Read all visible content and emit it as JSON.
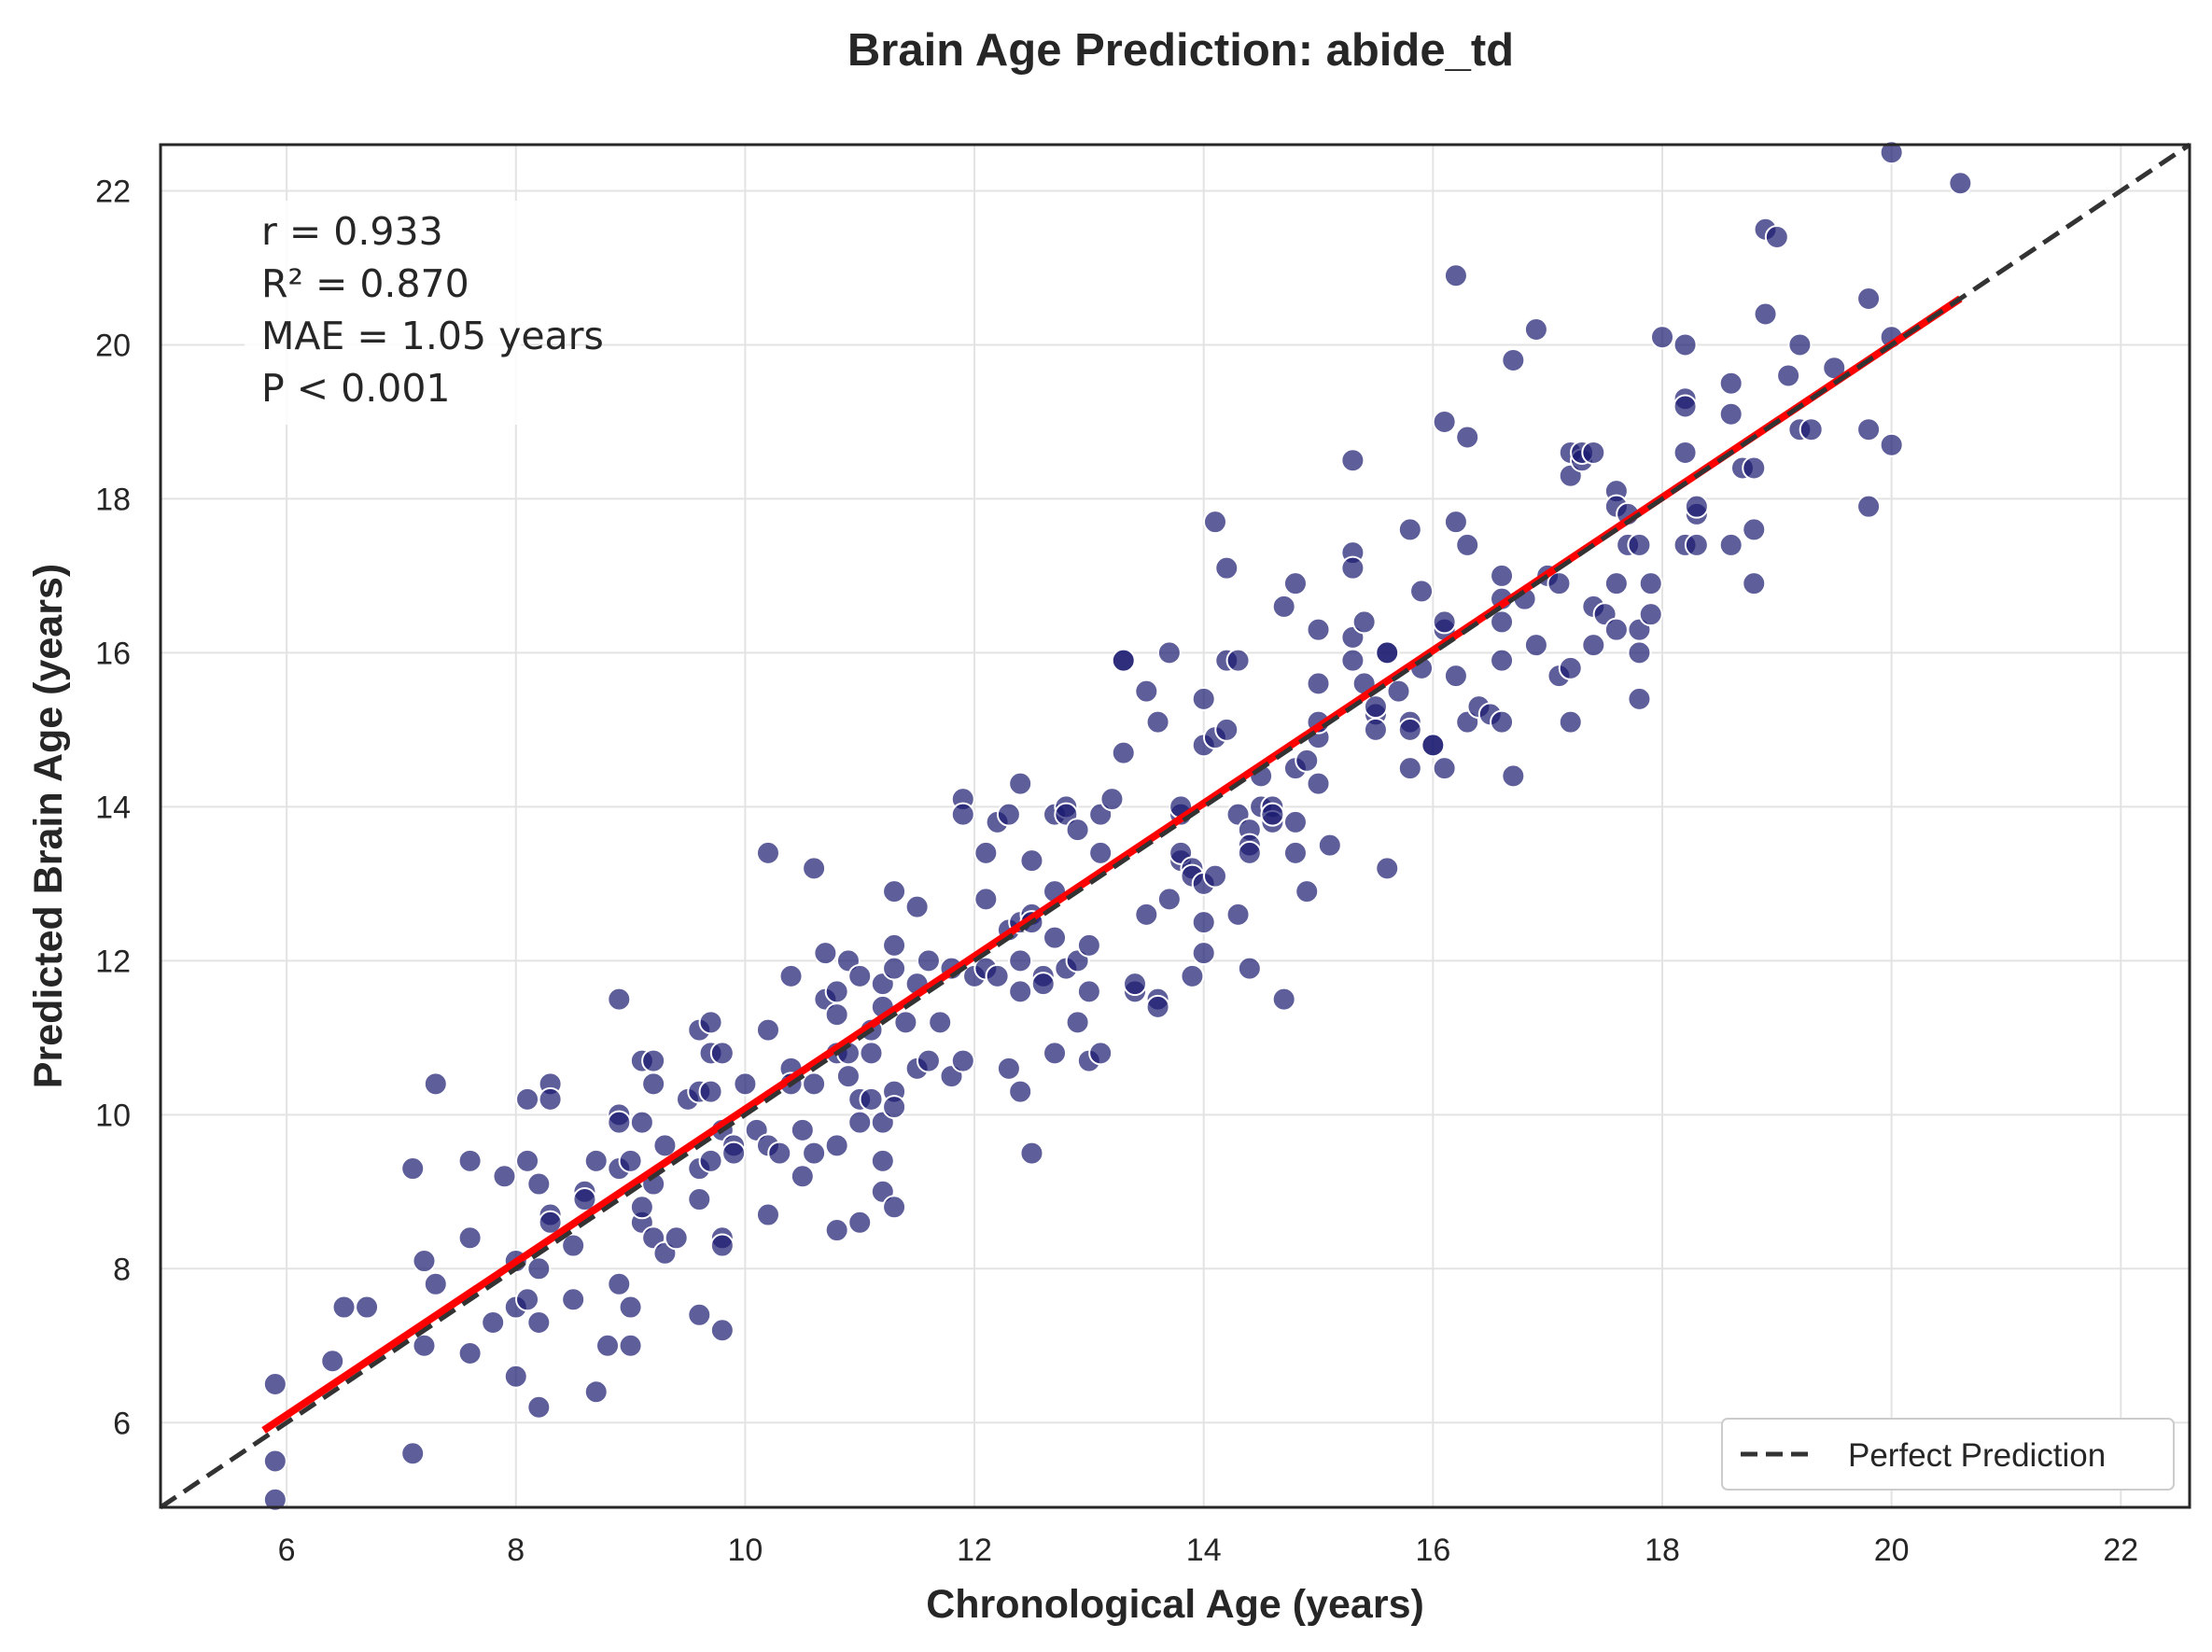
{
  "chart_data": {
    "type": "scatter",
    "title": "Brain Age Prediction: abide_td",
    "xlabel": "Chronological Age (years)",
    "ylabel": "Predicted Brain Age (years)",
    "xlim": [
      4.9,
      22.6
    ],
    "ylim": [
      4.9,
      22.6
    ],
    "xticks": [
      6,
      8,
      10,
      12,
      14,
      16,
      18,
      20,
      22
    ],
    "yticks": [
      6,
      8,
      10,
      12,
      14,
      16,
      18,
      20,
      22
    ],
    "grid": true,
    "legend": {
      "position": "bottom-right",
      "entries": [
        "Perfect Prediction"
      ]
    },
    "stats": {
      "r_line": "r = 0.933",
      "r2_line": "R² = 0.870",
      "mae_line": "MAE = 1.05 years",
      "p_line": "P < 0.001"
    },
    "colors": {
      "points": "#191970",
      "perfect_line": "#333333",
      "fit_line": "#ff0000"
    },
    "perfect_prediction_line": {
      "from": [
        4.9,
        4.9
      ],
      "to": [
        22.6,
        22.6
      ]
    },
    "fit_line": {
      "from": [
        5.8,
        5.9
      ],
      "to": [
        20.6,
        20.6
      ]
    },
    "points": [
      [
        5.9,
        6.5
      ],
      [
        5.9,
        5.5
      ],
      [
        5.9,
        5.0
      ],
      [
        6.4,
        6.8
      ],
      [
        6.5,
        7.5
      ],
      [
        6.7,
        7.5
      ],
      [
        7.1,
        9.3
      ],
      [
        7.1,
        5.6
      ],
      [
        7.2,
        7.0
      ],
      [
        7.2,
        8.1
      ],
      [
        7.3,
        10.4
      ],
      [
        7.3,
        7.8
      ],
      [
        7.6,
        9.4
      ],
      [
        7.6,
        8.4
      ],
      [
        7.6,
        6.9
      ],
      [
        7.8,
        7.3
      ],
      [
        7.9,
        9.2
      ],
      [
        8.0,
        8.1
      ],
      [
        8.0,
        6.6
      ],
      [
        8.0,
        7.5
      ],
      [
        8.1,
        9.4
      ],
      [
        8.1,
        7.6
      ],
      [
        8.1,
        10.2
      ],
      [
        8.2,
        9.1
      ],
      [
        8.2,
        7.3
      ],
      [
        8.2,
        6.2
      ],
      [
        8.2,
        8.0
      ],
      [
        8.3,
        10.4
      ],
      [
        8.3,
        10.2
      ],
      [
        8.3,
        8.7
      ],
      [
        8.3,
        8.6
      ],
      [
        8.5,
        8.3
      ],
      [
        8.5,
        7.6
      ],
      [
        8.6,
        9.0
      ],
      [
        8.6,
        8.9
      ],
      [
        8.7,
        9.4
      ],
      [
        8.7,
        6.4
      ],
      [
        8.8,
        7.0
      ],
      [
        8.9,
        9.3
      ],
      [
        8.9,
        11.5
      ],
      [
        8.9,
        10.0
      ],
      [
        8.9,
        9.9
      ],
      [
        8.9,
        7.8
      ],
      [
        9.0,
        7.5
      ],
      [
        9.0,
        7.0
      ],
      [
        9.0,
        9.4
      ],
      [
        9.1,
        9.9
      ],
      [
        9.1,
        8.6
      ],
      [
        9.1,
        10.7
      ],
      [
        9.1,
        8.8
      ],
      [
        9.2,
        10.7
      ],
      [
        9.2,
        10.4
      ],
      [
        9.2,
        8.4
      ],
      [
        9.2,
        9.1
      ],
      [
        9.3,
        8.2
      ],
      [
        9.3,
        9.6
      ],
      [
        9.4,
        8.4
      ],
      [
        9.5,
        10.2
      ],
      [
        9.6,
        10.3
      ],
      [
        9.6,
        11.1
      ],
      [
        9.6,
        8.9
      ],
      [
        9.6,
        7.4
      ],
      [
        9.6,
        9.3
      ],
      [
        9.7,
        9.4
      ],
      [
        9.7,
        11.2
      ],
      [
        9.7,
        10.8
      ],
      [
        9.7,
        10.3
      ],
      [
        9.8,
        10.8
      ],
      [
        9.8,
        8.4
      ],
      [
        9.8,
        8.3
      ],
      [
        9.8,
        7.2
      ],
      [
        9.8,
        9.8
      ],
      [
        9.9,
        9.6
      ],
      [
        9.9,
        9.5
      ],
      [
        10.0,
        10.4
      ],
      [
        10.1,
        9.8
      ],
      [
        10.2,
        9.6
      ],
      [
        10.2,
        8.7
      ],
      [
        10.2,
        13.4
      ],
      [
        10.2,
        11.1
      ],
      [
        10.3,
        9.5
      ],
      [
        10.4,
        10.6
      ],
      [
        10.4,
        11.8
      ],
      [
        10.4,
        10.4
      ],
      [
        10.5,
        9.2
      ],
      [
        10.5,
        9.8
      ],
      [
        10.6,
        10.4
      ],
      [
        10.6,
        9.5
      ],
      [
        10.6,
        13.2
      ],
      [
        10.7,
        11.5
      ],
      [
        10.7,
        12.1
      ],
      [
        10.8,
        10.8
      ],
      [
        10.8,
        11.6
      ],
      [
        10.8,
        11.3
      ],
      [
        10.8,
        9.6
      ],
      [
        10.8,
        8.5
      ],
      [
        10.9,
        10.8
      ],
      [
        10.9,
        10.5
      ],
      [
        10.9,
        12.0
      ],
      [
        11.0,
        11.8
      ],
      [
        11.0,
        10.2
      ],
      [
        11.0,
        9.9
      ],
      [
        11.0,
        8.6
      ],
      [
        11.1,
        10.8
      ],
      [
        11.1,
        11.1
      ],
      [
        11.1,
        10.2
      ],
      [
        11.2,
        11.4
      ],
      [
        11.2,
        11.7
      ],
      [
        11.2,
        9.9
      ],
      [
        11.2,
        9.4
      ],
      [
        11.2,
        9.0
      ],
      [
        11.3,
        8.8
      ],
      [
        11.3,
        12.9
      ],
      [
        11.3,
        12.2
      ],
      [
        11.3,
        11.9
      ],
      [
        11.3,
        10.3
      ],
      [
        11.3,
        10.1
      ],
      [
        11.4,
        11.2
      ],
      [
        11.5,
        12.7
      ],
      [
        11.5,
        11.7
      ],
      [
        11.5,
        10.6
      ],
      [
        11.6,
        12.0
      ],
      [
        11.6,
        10.7
      ],
      [
        11.7,
        11.2
      ],
      [
        11.8,
        10.5
      ],
      [
        11.8,
        11.9
      ],
      [
        11.9,
        10.7
      ],
      [
        11.9,
        14.1
      ],
      [
        11.9,
        13.9
      ],
      [
        12.0,
        11.8
      ],
      [
        12.1,
        13.4
      ],
      [
        12.1,
        12.8
      ],
      [
        12.1,
        11.9
      ],
      [
        12.2,
        13.8
      ],
      [
        12.2,
        11.8
      ],
      [
        12.3,
        12.4
      ],
      [
        12.3,
        13.9
      ],
      [
        12.3,
        10.6
      ],
      [
        12.4,
        14.3
      ],
      [
        12.4,
        12.5
      ],
      [
        12.4,
        11.6
      ],
      [
        12.4,
        10.3
      ],
      [
        12.4,
        12.0
      ],
      [
        12.5,
        13.3
      ],
      [
        12.5,
        12.6
      ],
      [
        12.5,
        9.5
      ],
      [
        12.5,
        12.5
      ],
      [
        12.6,
        11.8
      ],
      [
        12.6,
        11.7
      ],
      [
        12.7,
        13.9
      ],
      [
        12.7,
        12.9
      ],
      [
        12.7,
        12.3
      ],
      [
        12.7,
        10.8
      ],
      [
        12.8,
        14.0
      ],
      [
        12.8,
        13.9
      ],
      [
        12.8,
        11.9
      ],
      [
        12.9,
        13.7
      ],
      [
        12.9,
        12.0
      ],
      [
        12.9,
        11.2
      ],
      [
        13.0,
        11.6
      ],
      [
        13.0,
        10.7
      ],
      [
        13.0,
        12.2
      ],
      [
        13.1,
        10.8
      ],
      [
        13.1,
        13.4
      ],
      [
        13.1,
        13.9
      ],
      [
        13.2,
        14.1
      ],
      [
        13.3,
        15.9
      ],
      [
        13.3,
        15.9
      ],
      [
        13.3,
        14.7
      ],
      [
        13.4,
        11.6
      ],
      [
        13.4,
        11.7
      ],
      [
        13.5,
        15.5
      ],
      [
        13.5,
        12.6
      ],
      [
        13.6,
        15.1
      ],
      [
        13.6,
        11.5
      ],
      [
        13.6,
        11.4
      ],
      [
        13.7,
        16.0
      ],
      [
        13.7,
        12.8
      ],
      [
        13.8,
        13.3
      ],
      [
        13.8,
        13.4
      ],
      [
        13.8,
        13.9
      ],
      [
        13.8,
        14.0
      ],
      [
        13.9,
        13.2
      ],
      [
        13.9,
        13.1
      ],
      [
        13.9,
        11.8
      ],
      [
        14.0,
        13.0
      ],
      [
        14.0,
        15.4
      ],
      [
        14.0,
        14.8
      ],
      [
        14.0,
        12.1
      ],
      [
        14.0,
        12.5
      ],
      [
        14.1,
        17.7
      ],
      [
        14.1,
        14.9
      ],
      [
        14.1,
        13.1
      ],
      [
        14.2,
        17.1
      ],
      [
        14.2,
        15.9
      ],
      [
        14.2,
        15.0
      ],
      [
        14.3,
        15.9
      ],
      [
        14.3,
        13.9
      ],
      [
        14.3,
        12.6
      ],
      [
        14.4,
        13.7
      ],
      [
        14.4,
        13.5
      ],
      [
        14.4,
        13.4
      ],
      [
        14.4,
        11.9
      ],
      [
        14.5,
        14.4
      ],
      [
        14.5,
        14.0
      ],
      [
        14.6,
        14.0
      ],
      [
        14.6,
        13.8
      ],
      [
        14.6,
        13.9
      ],
      [
        14.7,
        11.5
      ],
      [
        14.7,
        16.6
      ],
      [
        14.8,
        16.9
      ],
      [
        14.8,
        14.5
      ],
      [
        14.8,
        13.8
      ],
      [
        14.8,
        13.4
      ],
      [
        14.9,
        14.6
      ],
      [
        14.9,
        12.9
      ],
      [
        15.0,
        14.9
      ],
      [
        15.0,
        15.1
      ],
      [
        15.0,
        15.6
      ],
      [
        15.0,
        16.3
      ],
      [
        15.0,
        14.3
      ],
      [
        15.1,
        13.5
      ],
      [
        15.3,
        18.5
      ],
      [
        15.3,
        17.3
      ],
      [
        15.3,
        17.1
      ],
      [
        15.3,
        16.2
      ],
      [
        15.3,
        15.9
      ],
      [
        15.4,
        15.6
      ],
      [
        15.4,
        16.4
      ],
      [
        15.5,
        15.2
      ],
      [
        15.5,
        15.3
      ],
      [
        15.5,
        15.0
      ],
      [
        15.6,
        16.0
      ],
      [
        15.6,
        16.0
      ],
      [
        15.6,
        13.2
      ],
      [
        15.7,
        15.5
      ],
      [
        15.8,
        15.1
      ],
      [
        15.8,
        15.0
      ],
      [
        15.8,
        17.6
      ],
      [
        15.8,
        14.5
      ],
      [
        15.9,
        15.8
      ],
      [
        15.9,
        16.8
      ],
      [
        16.0,
        14.8
      ],
      [
        16.0,
        14.8
      ],
      [
        16.1,
        16.3
      ],
      [
        16.1,
        16.4
      ],
      [
        16.1,
        19.0
      ],
      [
        16.1,
        14.5
      ],
      [
        16.2,
        20.9
      ],
      [
        16.2,
        15.7
      ],
      [
        16.2,
        17.7
      ],
      [
        16.3,
        15.1
      ],
      [
        16.3,
        18.8
      ],
      [
        16.3,
        17.4
      ],
      [
        16.4,
        15.3
      ],
      [
        16.5,
        15.2
      ],
      [
        16.6,
        17.0
      ],
      [
        16.6,
        16.7
      ],
      [
        16.6,
        16.4
      ],
      [
        16.6,
        15.9
      ],
      [
        16.6,
        15.1
      ],
      [
        16.7,
        19.8
      ],
      [
        16.7,
        14.4
      ],
      [
        16.8,
        16.7
      ],
      [
        16.9,
        16.1
      ],
      [
        16.9,
        20.2
      ],
      [
        17.0,
        17.0
      ],
      [
        17.1,
        16.9
      ],
      [
        17.1,
        15.7
      ],
      [
        17.2,
        18.6
      ],
      [
        17.2,
        18.3
      ],
      [
        17.2,
        15.8
      ],
      [
        17.2,
        15.1
      ],
      [
        17.3,
        18.5
      ],
      [
        17.3,
        18.6
      ],
      [
        17.4,
        18.6
      ],
      [
        17.4,
        16.6
      ],
      [
        17.4,
        16.1
      ],
      [
        17.5,
        16.5
      ],
      [
        17.6,
        18.1
      ],
      [
        17.6,
        17.9
      ],
      [
        17.6,
        16.9
      ],
      [
        17.6,
        16.3
      ],
      [
        17.7,
        17.4
      ],
      [
        17.7,
        17.8
      ],
      [
        17.8,
        17.4
      ],
      [
        17.8,
        16.3
      ],
      [
        17.8,
        16.0
      ],
      [
        17.8,
        15.4
      ],
      [
        17.9,
        16.9
      ],
      [
        17.9,
        16.5
      ],
      [
        18.0,
        20.1
      ],
      [
        18.2,
        19.3
      ],
      [
        18.2,
        19.2
      ],
      [
        18.2,
        18.6
      ],
      [
        18.2,
        20.0
      ],
      [
        18.2,
        17.4
      ],
      [
        18.3,
        17.8
      ],
      [
        18.3,
        17.9
      ],
      [
        18.3,
        17.4
      ],
      [
        18.6,
        19.5
      ],
      [
        18.6,
        19.1
      ],
      [
        18.6,
        17.4
      ],
      [
        18.7,
        18.4
      ],
      [
        18.8,
        16.9
      ],
      [
        18.8,
        17.6
      ],
      [
        18.8,
        18.4
      ],
      [
        18.9,
        21.5
      ],
      [
        18.9,
        20.4
      ],
      [
        19.0,
        21.4
      ],
      [
        19.1,
        19.6
      ],
      [
        19.2,
        18.9
      ],
      [
        19.2,
        20.0
      ],
      [
        19.3,
        18.9
      ],
      [
        19.5,
        19.7
      ],
      [
        19.8,
        18.9
      ],
      [
        19.8,
        20.6
      ],
      [
        19.8,
        17.9
      ],
      [
        20.0,
        22.5
      ],
      [
        20.0,
        20.1
      ],
      [
        20.0,
        18.7
      ],
      [
        20.6,
        22.1
      ]
    ]
  }
}
